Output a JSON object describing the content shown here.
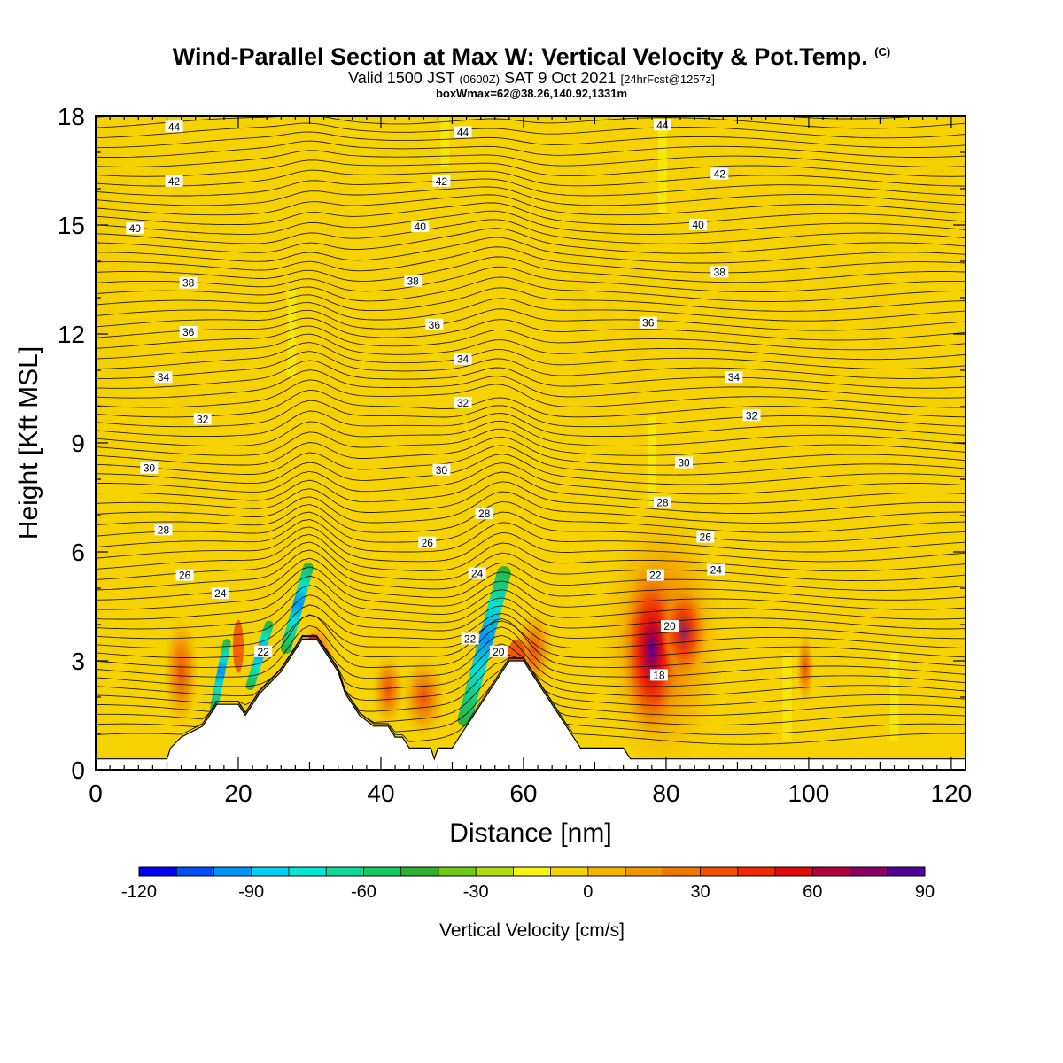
{
  "title": {
    "main": "Wind-Parallel Section at Max W: Vertical Velocity & Pot.Temp.",
    "copyright": "(C)",
    "valid_prefix": "Valid 1500 JST",
    "valid_z": "(0600Z)",
    "valid_date": "SAT 9 Oct 2021",
    "forecast": "[24hrFcst@1257z]",
    "boxinfo": "boxWmax=62@38.26,140.92,1331m"
  },
  "chart_data": {
    "type": "heatmap",
    "xlabel": "Distance [nm]",
    "ylabel": "Height [Kft MSL]",
    "xlim": [
      0,
      122
    ],
    "ylim": [
      0,
      18
    ],
    "x_ticks": [
      0,
      20,
      40,
      60,
      80,
      100,
      120
    ],
    "y_ticks": [
      0,
      3,
      6,
      9,
      12,
      15,
      18
    ],
    "colorbar": {
      "label": "Vertical Velocity [cm/s]",
      "ticks": [
        -120,
        -90,
        -60,
        -30,
        0,
        30,
        60,
        90
      ],
      "range": [
        -120,
        90
      ],
      "colors": [
        "#0000f0",
        "#0050f5",
        "#0096f5",
        "#00d2f5",
        "#00e6d2",
        "#10d898",
        "#18c860",
        "#30b030",
        "#70c818",
        "#b0dc10",
        "#f5f510",
        "#f5d200",
        "#f5b400",
        "#f09600",
        "#f07800",
        "#f05000",
        "#f02800",
        "#e00a0a",
        "#b4003c",
        "#8c0064",
        "#500096"
      ]
    },
    "theta_contours_celsius": [
      18,
      20,
      22,
      24,
      26,
      28,
      30,
      32,
      34,
      36,
      38,
      40,
      42,
      44
    ],
    "contour_labels": [
      {
        "v": "44",
        "x": 11,
        "y": 17.7
      },
      {
        "v": "44",
        "x": 51.5,
        "y": 17.55
      },
      {
        "v": "44",
        "x": 79.5,
        "y": 17.75
      },
      {
        "v": "42",
        "x": 11,
        "y": 16.2
      },
      {
        "v": "42",
        "x": 48.5,
        "y": 16.2
      },
      {
        "v": "42",
        "x": 87.5,
        "y": 16.4
      },
      {
        "v": "40",
        "x": 5.5,
        "y": 14.9
      },
      {
        "v": "40",
        "x": 45.5,
        "y": 14.95
      },
      {
        "v": "40",
        "x": 84.5,
        "y": 15.0
      },
      {
        "v": "38",
        "x": 13,
        "y": 13.4
      },
      {
        "v": "38",
        "x": 44.5,
        "y": 13.45
      },
      {
        "v": "38",
        "x": 87.5,
        "y": 13.7
      },
      {
        "v": "36",
        "x": 13,
        "y": 12.05
      },
      {
        "v": "36",
        "x": 47.5,
        "y": 12.25
      },
      {
        "v": "36",
        "x": 77.5,
        "y": 12.3
      },
      {
        "v": "34",
        "x": 9.5,
        "y": 10.8
      },
      {
        "v": "34",
        "x": 51.5,
        "y": 11.3
      },
      {
        "v": "34",
        "x": 89.5,
        "y": 10.8
      },
      {
        "v": "32",
        "x": 15,
        "y": 9.65
      },
      {
        "v": "32",
        "x": 51.5,
        "y": 10.1
      },
      {
        "v": "32",
        "x": 92,
        "y": 9.75
      },
      {
        "v": "30",
        "x": 7.5,
        "y": 8.3
      },
      {
        "v": "30",
        "x": 48.5,
        "y": 8.25
      },
      {
        "v": "30",
        "x": 82.5,
        "y": 8.45
      },
      {
        "v": "28",
        "x": 9.5,
        "y": 6.6
      },
      {
        "v": "28",
        "x": 54.5,
        "y": 7.05
      },
      {
        "v": "28",
        "x": 79.5,
        "y": 7.35
      },
      {
        "v": "26",
        "x": 12.5,
        "y": 5.35
      },
      {
        "v": "26",
        "x": 46.5,
        "y": 6.25
      },
      {
        "v": "26",
        "x": 85.5,
        "y": 6.4
      },
      {
        "v": "24",
        "x": 17.5,
        "y": 4.85
      },
      {
        "v": "24",
        "x": 53.5,
        "y": 5.4
      },
      {
        "v": "24",
        "x": 87,
        "y": 5.5
      },
      {
        "v": "22",
        "x": 23.5,
        "y": 3.25
      },
      {
        "v": "22",
        "x": 52.5,
        "y": 3.6
      },
      {
        "v": "22",
        "x": 78.5,
        "y": 5.35
      },
      {
        "v": "20",
        "x": 56.5,
        "y": 3.25
      },
      {
        "v": "20",
        "x": 80.5,
        "y": 3.95
      },
      {
        "v": "18",
        "x": 79,
        "y": 2.6
      }
    ],
    "terrain_kft": [
      [
        0,
        0.3
      ],
      [
        10,
        0.3
      ],
      [
        10.5,
        0.6
      ],
      [
        12,
        0.9
      ],
      [
        15,
        1.2
      ],
      [
        17,
        1.8
      ],
      [
        20,
        1.8
      ],
      [
        21,
        1.5
      ],
      [
        22,
        1.8
      ],
      [
        23,
        2.1
      ],
      [
        24.5,
        2.4
      ],
      [
        26,
        2.7
      ],
      [
        27,
        3.0
      ],
      [
        28,
        3.3
      ],
      [
        29,
        3.6
      ],
      [
        31,
        3.6
      ],
      [
        32,
        3.3
      ],
      [
        33,
        3.0
      ],
      [
        34,
        2.7
      ],
      [
        35,
        2.1
      ],
      [
        36,
        1.8
      ],
      [
        37,
        1.5
      ],
      [
        39,
        1.2
      ],
      [
        41,
        1.2
      ],
      [
        42,
        0.9
      ],
      [
        43,
        0.9
      ],
      [
        44,
        0.6
      ],
      [
        47,
        0.6
      ],
      [
        47.5,
        0.3
      ],
      [
        48,
        0.6
      ],
      [
        50,
        0.6
      ],
      [
        51,
        0.9
      ],
      [
        52,
        1.2
      ],
      [
        53,
        1.5
      ],
      [
        54,
        1.8
      ],
      [
        55,
        2.1
      ],
      [
        56,
        2.4
      ],
      [
        57,
        2.7
      ],
      [
        58,
        3.0
      ],
      [
        60,
        3.0
      ],
      [
        61,
        2.7
      ],
      [
        62,
        2.4
      ],
      [
        63,
        2.1
      ],
      [
        64,
        1.8
      ],
      [
        65,
        1.5
      ],
      [
        66,
        1.2
      ],
      [
        67,
        0.9
      ],
      [
        68,
        0.6
      ],
      [
        74,
        0.6
      ],
      [
        75,
        0.3
      ],
      [
        122,
        0.3
      ]
    ]
  }
}
